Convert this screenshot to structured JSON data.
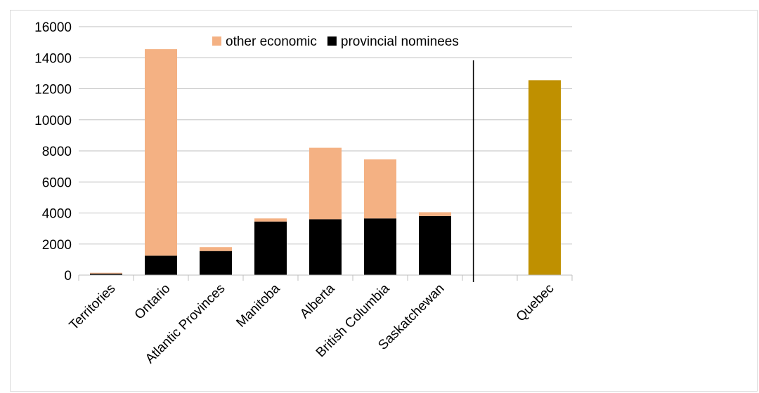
{
  "chart_data": {
    "type": "bar",
    "stacked": true,
    "categories": [
      "Territories",
      "Ontario",
      "Atlantic Provinces",
      "Manitoba",
      "Alberta",
      "British Columbia",
      "Saskatchewan",
      "",
      "Quebec"
    ],
    "series": [
      {
        "name": "provincial nominees",
        "color": "#000000",
        "values": [
          100,
          1250,
          1550,
          3450,
          3600,
          3650,
          3800,
          null,
          null
        ]
      },
      {
        "name": "other economic",
        "color": "#F4B183",
        "values": [
          50,
          13300,
          250,
          200,
          4600,
          3800,
          250,
          null,
          null
        ]
      }
    ],
    "separate_bars": [
      {
        "category": "Quebec",
        "value": 12550,
        "color": "#BF9000"
      }
    ],
    "divider_after_category": "Saskatchewan",
    "ylim": [
      0,
      16000
    ],
    "yticks": [
      0,
      2000,
      4000,
      6000,
      8000,
      10000,
      12000,
      14000,
      16000
    ],
    "grid": true,
    "legend_position": "top-center",
    "title": "",
    "xlabel": "",
    "ylabel": ""
  }
}
